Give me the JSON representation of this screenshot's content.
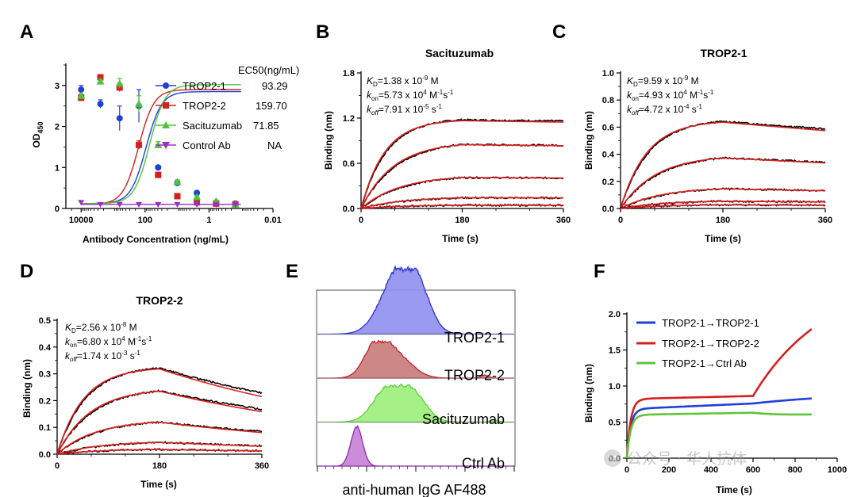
{
  "watermark": {
    "text": "公众号 · 华人抗体"
  },
  "chart_data": [
    {
      "id": "A",
      "label": "A",
      "type": "scatter",
      "title": "",
      "xlabel": "Antibody Concentration (ng/mL)",
      "ylabel": "OD",
      "ylabel_sub": "450",
      "x_scale": "log",
      "x_reversed": true,
      "xlim": [
        30000,
        0.01
      ],
      "ylim": [
        0,
        3.5
      ],
      "xticks": [
        10000,
        100,
        1,
        0.01
      ],
      "xtick_labels": [
        "10000",
        "100",
        "1",
        "0.01"
      ],
      "yticks": [
        0,
        1,
        2,
        3
      ],
      "ytick_labels": [
        "0",
        "1",
        "2",
        "3"
      ],
      "legend_header": "EC50(ng/mL)",
      "x": [
        10000,
        2500,
        625,
        156,
        39,
        9.8,
        2.4,
        0.6,
        0.15
      ],
      "series": [
        {
          "name": "TROP2-1",
          "ec50": "93.29",
          "color": "#1f3fd9",
          "marker": "circle",
          "values": [
            2.9,
            2.55,
            2.2,
            2.5,
            1.0,
            0.62,
            0.38,
            0.15,
            0.12
          ],
          "errors": [
            0.1,
            0.1,
            0.3,
            0.4,
            0.05,
            0.05,
            0.05,
            0.02,
            0.02
          ],
          "fit": {
            "top": 2.85,
            "bottom": 0.12,
            "ec50": 93.29,
            "hill": 1.8
          }
        },
        {
          "name": "TROP2-2",
          "ec50": "159.70",
          "color": "#d42020",
          "marker": "square",
          "values": [
            2.7,
            3.2,
            2.95,
            1.55,
            0.82,
            0.3,
            0.15,
            0.12,
            0.1
          ],
          "errors": [
            0.08,
            0.05,
            0.1,
            0.1,
            0.05,
            0.03,
            0.02,
            0.02,
            0.02
          ],
          "fit": {
            "top": 2.9,
            "bottom": 0.1,
            "ec50": 159.7,
            "hill": 1.8
          }
        },
        {
          "name": "Sacituzumab",
          "ec50": "71.85",
          "color": "#4fc43a",
          "marker": "triangle",
          "values": [
            2.75,
            3.1,
            3.05,
            2.55,
            1.55,
            0.65,
            0.28,
            0.18,
            0.1
          ],
          "errors": [
            0.05,
            0.05,
            0.12,
            0.2,
            0.08,
            0.05,
            0.03,
            0.02,
            0.02
          ],
          "fit": {
            "top": 3.02,
            "bottom": 0.12,
            "ec50": 71.85,
            "hill": 1.8
          }
        },
        {
          "name": "Control Ab",
          "ec50": "NA",
          "color": "#9a2fc9",
          "marker": "triangle-down",
          "values": [
            0.15,
            0.1,
            0.1,
            0.1,
            0.1,
            0.1,
            0.1,
            0.1,
            0.1
          ],
          "errors": [
            0,
            0,
            0,
            0,
            0,
            0,
            0,
            0,
            0
          ],
          "fit": {
            "top": 0.1,
            "bottom": 0.1,
            "ec50": 100,
            "hill": 1
          }
        }
      ]
    },
    {
      "id": "B",
      "label": "B",
      "type": "line",
      "title": "Sacituzumab",
      "xlabel": "Time (s)",
      "ylabel": "Binding (nm)",
      "xlim": [
        0,
        360
      ],
      "ylim": [
        0,
        1.8
      ],
      "xticks": [
        0,
        180,
        360
      ],
      "xtick_labels": [
        "0",
        "180",
        "360"
      ],
      "yticks": [
        0,
        0.6,
        1.2,
        1.8
      ],
      "ytick_labels": [
        "0.0",
        "0.6",
        "1.2",
        "1.8"
      ],
      "annotation": {
        "kd": "1.38 x 10",
        "kd_exp": "-9",
        "kd_unit": " M",
        "kon": "5.73 x 10",
        "kon_exp": "4",
        "kon_unit": " M",
        "koff": "7.91 x 10",
        "koff_exp": "-5",
        "koff_unit": " s"
      },
      "association_end": 180,
      "x_end": 360,
      "traces": [
        {
          "plateau": 1.2,
          "assoc_rate": 0.022,
          "diss_rate": 8e-05
        },
        {
          "plateau": 0.9,
          "assoc_rate": 0.016,
          "diss_rate": 8e-05
        },
        {
          "plateau": 0.45,
          "assoc_rate": 0.0135,
          "diss_rate": 8e-05
        },
        {
          "plateau": 0.16,
          "assoc_rate": 0.012,
          "diss_rate": 8e-05
        },
        {
          "plateau": 0.05,
          "assoc_rate": 0.011,
          "diss_rate": 8e-05
        }
      ],
      "fit_color": "#e02020",
      "trace_color": "#000000"
    },
    {
      "id": "C",
      "label": "C",
      "type": "line",
      "title": "TROP2-1",
      "xlabel": "Time (s)",
      "ylabel": "Binding (nm)",
      "xlim": [
        0,
        360
      ],
      "ylim": [
        0,
        1.0
      ],
      "xticks": [
        0,
        180,
        360
      ],
      "xtick_labels": [
        "0",
        "180",
        "360"
      ],
      "yticks": [
        0,
        0.2,
        0.4,
        0.6,
        0.8,
        1.0
      ],
      "ytick_labels": [
        "0.0",
        "0.2",
        "0.4",
        "0.6",
        "0.8",
        "1.0"
      ],
      "annotation": {
        "kd": "9.59 x 10",
        "kd_exp": "-9",
        "kd_unit": " M",
        "kon": "4.93 x 10",
        "kon_exp": "4",
        "kon_unit": " M",
        "koff": "4.72 x 10",
        "koff_exp": "-4",
        "koff_unit": " s"
      },
      "association_end": 180,
      "x_end": 360,
      "traces": [
        {
          "plateau": 0.66,
          "assoc_rate": 0.02,
          "diss_rate": 0.0005
        },
        {
          "plateau": 0.4,
          "assoc_rate": 0.015,
          "diss_rate": 0.0005
        },
        {
          "plateau": 0.16,
          "assoc_rate": 0.013,
          "diss_rate": 0.0005
        },
        {
          "plateau": 0.06,
          "assoc_rate": 0.012,
          "diss_rate": 0.0005
        },
        {
          "plateau": 0.03,
          "assoc_rate": 0.012,
          "diss_rate": 0.0005
        }
      ],
      "fit_color": "#e02020",
      "trace_color": "#000000"
    },
    {
      "id": "D",
      "label": "D",
      "type": "line",
      "title": "TROP2-2",
      "xlabel": "Time (s)",
      "ylabel": "Binding (nm)",
      "xlim": [
        0,
        360
      ],
      "ylim": [
        0,
        0.5
      ],
      "xticks": [
        0,
        180,
        360
      ],
      "xtick_labels": [
        "0",
        "180",
        "360"
      ],
      "yticks": [
        0,
        0.1,
        0.2,
        0.3,
        0.4,
        0.5
      ],
      "ytick_labels": [
        "0.0",
        "0.1",
        "0.2",
        "0.3",
        "0.4",
        "0.5"
      ],
      "annotation": {
        "kd": "2.56 x 10",
        "kd_exp": "-8",
        "kd_unit": " M",
        "kon": "6.80 x 10",
        "kon_exp": "4",
        "kon_unit": " M",
        "koff": "1.74 x 10",
        "koff_exp": "-3",
        "koff_unit": " s"
      },
      "association_end": 180,
      "x_end": 360,
      "traces": [
        {
          "plateau": 0.33,
          "assoc_rate": 0.02,
          "diss_rate": 0.0019
        },
        {
          "plateau": 0.25,
          "assoc_rate": 0.016,
          "diss_rate": 0.0019
        },
        {
          "plateau": 0.13,
          "assoc_rate": 0.014,
          "diss_rate": 0.0019
        },
        {
          "plateau": 0.05,
          "assoc_rate": 0.012,
          "diss_rate": 0.0019
        },
        {
          "plateau": 0.02,
          "assoc_rate": 0.012,
          "diss_rate": 0.0019
        }
      ],
      "fit_color": "#e02020",
      "trace_color": "#000000"
    },
    {
      "id": "E",
      "label": "E",
      "type": "area",
      "title": "",
      "xlabel": "anti-human IgG AF488",
      "rows": [
        {
          "name": "TROP2-1",
          "fill": "#8f8ff0",
          "stroke": "#2f2fd6",
          "peaks": [
            {
              "mu": 0.42,
              "sigma": 0.09,
              "amp": 1.0
            },
            {
              "mu": 0.52,
              "sigma": 0.06,
              "amp": 0.35
            }
          ]
        },
        {
          "name": "TROP2-2",
          "fill": "#c97a7a",
          "stroke": "#c8202a",
          "peaks": [
            {
              "mu": 0.3,
              "sigma": 0.06,
              "amp": 0.85
            },
            {
              "mu": 0.4,
              "sigma": 0.08,
              "amp": 0.6
            },
            {
              "mu": 0.85,
              "sigma": 0.02,
              "amp": 0.08
            }
          ]
        },
        {
          "name": "Sacituzumab",
          "fill": "#9bf07a",
          "stroke": "#5fd03a",
          "peaks": [
            {
              "mu": 0.35,
              "sigma": 0.07,
              "amp": 0.85
            },
            {
              "mu": 0.48,
              "sigma": 0.07,
              "amp": 0.8
            },
            {
              "mu": 0.9,
              "sigma": 0.02,
              "amp": 0.06
            }
          ]
        },
        {
          "name": "Ctrl Ab",
          "fill": "#c77fd6",
          "stroke": "#8a2fa6",
          "peaks": [
            {
              "mu": 0.2,
              "sigma": 0.03,
              "amp": 1.0
            }
          ]
        }
      ]
    },
    {
      "id": "F",
      "label": "F",
      "type": "line",
      "title": "",
      "xlabel": "Time (s)",
      "ylabel": "Binding (nm)",
      "xlim": [
        0,
        1000
      ],
      "ylim": [
        0,
        2.0
      ],
      "xticks": [
        0,
        200,
        400,
        600,
        800,
        1000
      ],
      "xtick_labels": [
        "0",
        "200",
        "400",
        "600",
        "800",
        "1000"
      ],
      "yticks": [
        0,
        0.5,
        1.0,
        1.5,
        2.0
      ],
      "ytick_labels": [
        "0.0",
        "0.5",
        "1.0",
        "1.5",
        "2.0"
      ],
      "series": [
        {
          "name": "TROP2-1→TROP2-1",
          "color": "#1f3fd9",
          "base": 0.68,
          "slope": 0.00013,
          "step_at": 600,
          "step_amp": 0.05,
          "step_rate": 0.004,
          "end": 880
        },
        {
          "name": "TROP2-1→TROP2-2",
          "color": "#d42020",
          "base": 0.82,
          "slope": 7e-05,
          "step_at": 600,
          "step_amp": 1.6,
          "step_rate": 0.003,
          "end": 880
        },
        {
          "name": "TROP2-1→Ctrl Ab",
          "color": "#5fc43a",
          "base": 0.6,
          "slope": 5e-05,
          "step_at": 600,
          "step_amp": -0.04,
          "step_rate": 0.01,
          "end": 880
        }
      ]
    }
  ]
}
